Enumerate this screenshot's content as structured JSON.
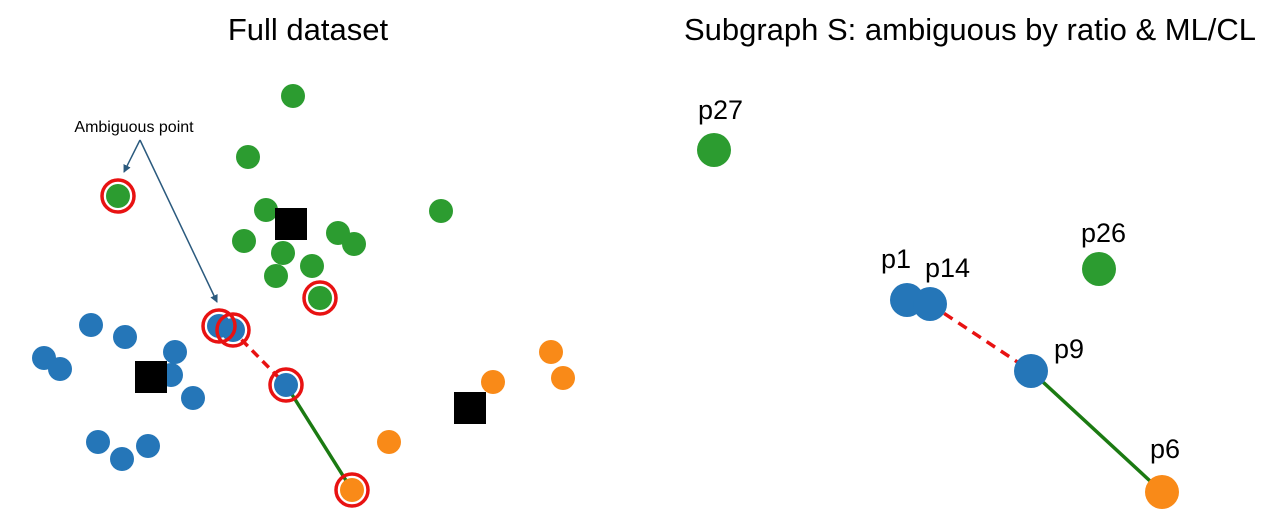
{
  "colors": {
    "blue": "#2576b8",
    "green": "#2c9c30",
    "orange": "#f98a18",
    "black": "#000000",
    "ring": "#e81212",
    "ml_link": "#1b7a12",
    "cl_link": "#e81212",
    "arrow": "#2b5a7e"
  },
  "left": {
    "title": "Full dataset",
    "annotation": "Ambiguous point"
  },
  "right": {
    "title": "Subgraph S: ambiguous by ratio & ML/CL",
    "labels": {
      "p27": "p27",
      "p26": "p26",
      "p1": "p1",
      "p14": "p14",
      "p9": "p9",
      "p6": "p6"
    }
  }
}
